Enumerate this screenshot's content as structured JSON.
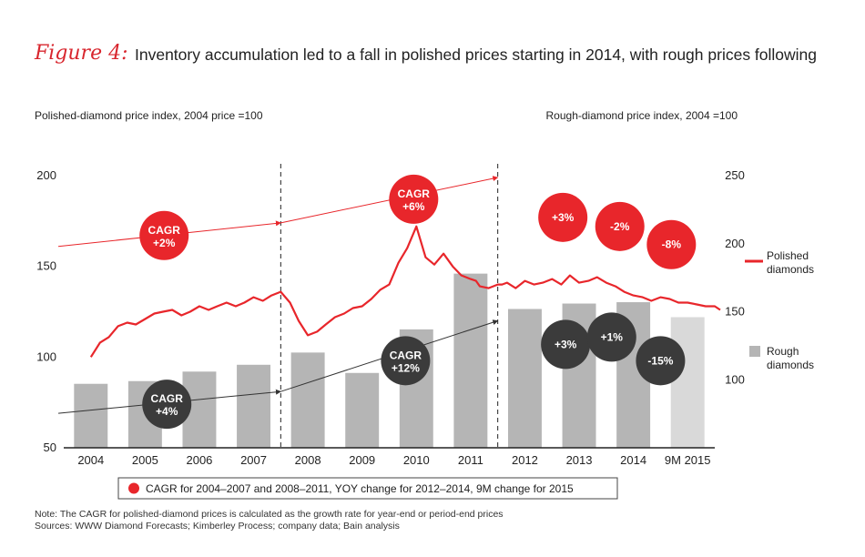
{
  "figure": {
    "label": "Figure 4:",
    "title": "Inventory accumulation led to a fall in polished prices starting in 2014, with rough prices following"
  },
  "left_axis_title": "Polished-diamond price index, 2004 price =100",
  "right_axis_title": "Rough-diamond price index, 2004 =100",
  "chart_data": {
    "type": "bar+line",
    "categories": [
      "2004",
      "2005",
      "2006",
      "2007",
      "2008",
      "2009",
      "2010",
      "2011",
      "2012",
      "2013",
      "2014",
      "9M 2015"
    ],
    "left_axis": {
      "ticks": [
        "50",
        "100",
        "150",
        "200"
      ],
      "ylim": [
        50,
        200
      ],
      "label": "Polished-diamond price index, 2004 price =100"
    },
    "right_axis": {
      "ticks": [
        "100",
        "150",
        "200",
        "250"
      ],
      "ylim": [
        50,
        250
      ],
      "label": "Rough-diamond price index, 2004 =100"
    },
    "rough_bars": {
      "name": "Rough diamonds",
      "axis": "right",
      "values": [
        97,
        99,
        106,
        111,
        120,
        105,
        137,
        178,
        152,
        156,
        157,
        146
      ],
      "colors": [
        "#b5b5b5",
        "#b5b5b5",
        "#b5b5b5",
        "#b5b5b5",
        "#b5b5b5",
        "#b5b5b5",
        "#b5b5b5",
        "#b5b5b5",
        "#b5b5b5",
        "#b5b5b5",
        "#b5b5b5",
        "#d9d9d9"
      ]
    },
    "polished_line": {
      "name": "Polished diamonds",
      "axis": "left",
      "color": "#e8262b",
      "x": [
        0.0,
        0.17,
        0.33,
        0.5,
        0.67,
        0.83,
        1.0,
        1.17,
        1.33,
        1.5,
        1.67,
        1.83,
        2.0,
        2.17,
        2.33,
        2.5,
        2.67,
        2.83,
        3.0,
        3.17,
        3.33,
        3.5,
        3.67,
        3.83,
        4.0,
        4.17,
        4.33,
        4.5,
        4.67,
        4.83,
        5.0,
        5.17,
        5.33,
        5.5,
        5.67,
        5.83,
        6.0,
        6.17,
        6.33,
        6.5,
        6.67,
        6.83,
        7.0,
        7.1,
        7.17,
        7.33,
        7.5,
        7.58,
        7.67,
        7.83,
        8.0,
        8.17,
        8.33,
        8.5,
        8.67,
        8.83,
        9.0,
        9.17,
        9.33,
        9.5,
        9.67,
        9.83,
        10.0,
        10.17,
        10.33,
        10.5,
        10.67,
        10.83,
        11.0,
        11.17,
        11.33,
        11.5,
        11.6
      ],
      "values": [
        100,
        108,
        111,
        117,
        119,
        118,
        121,
        124,
        125,
        126,
        123,
        125,
        128,
        126,
        128,
        130,
        128,
        130,
        133,
        131,
        134,
        136,
        130,
        120,
        112,
        114,
        118,
        122,
        124,
        127,
        128,
        132,
        137,
        140,
        152,
        160,
        172,
        155,
        151,
        157,
        150,
        145,
        143,
        142,
        139,
        138,
        140,
        140,
        141,
        138,
        142,
        140,
        141,
        143,
        140,
        145,
        141,
        142,
        144,
        141,
        139,
        136,
        134,
        133,
        131,
        133,
        132,
        130,
        130,
        129,
        128,
        128,
        126
      ],
      "x_note": "x in category units: 0 = center of 2004, 11 = center of 9M 2015 (approx. offset from centers)"
    },
    "polished_cagr_line": {
      "x": [
        -0.6,
        3.5,
        7.5
      ],
      "values": [
        161,
        174,
        199
      ],
      "axis": "left"
    },
    "rough_cagr_line": {
      "x": [
        -0.6,
        3.5,
        7.5
      ],
      "values": [
        69,
        81,
        120
      ],
      "axis": "left"
    },
    "dividers_after_categories": [
      "2007",
      "2011"
    ],
    "badges": [
      {
        "id": "polished-cagr-2004-2007",
        "text": [
          "CAGR",
          "+2%"
        ],
        "color": "red",
        "x": 1.35,
        "v": 167
      },
      {
        "id": "polished-cagr-2008-2011",
        "text": [
          "CAGR",
          "+6%"
        ],
        "color": "red",
        "x": 5.95,
        "v": 187
      },
      {
        "id": "polished-yoy-2012",
        "text": [
          "+3%"
        ],
        "color": "red",
        "x": 8.7,
        "v": 177
      },
      {
        "id": "polished-yoy-2013",
        "text": [
          "-2%"
        ],
        "color": "red",
        "x": 9.75,
        "v": 172
      },
      {
        "id": "polished-9m-2015",
        "text": [
          "-8%"
        ],
        "color": "red",
        "x": 10.7,
        "v": 162
      },
      {
        "id": "rough-cagr-2004-2007",
        "text": [
          "CAGR",
          "+4%"
        ],
        "color": "dark",
        "x": 1.4,
        "v": 74
      },
      {
        "id": "rough-cagr-2008-2011",
        "text": [
          "CAGR",
          "+12%"
        ],
        "color": "dark",
        "x": 5.8,
        "v": 98
      },
      {
        "id": "rough-yoy-2013",
        "text": [
          "+3%"
        ],
        "color": "dark",
        "x": 8.75,
        "v": 107
      },
      {
        "id": "rough-yoy-2014",
        "text": [
          "+1%"
        ],
        "color": "dark",
        "x": 9.6,
        "v": 111
      },
      {
        "id": "rough-9m-2015",
        "text": [
          "-15%"
        ],
        "color": "dark",
        "x": 10.5,
        "v": 98
      }
    ],
    "legend": [
      {
        "name": "Polished diamonds",
        "lines": [
          "Polished",
          "diamonds"
        ],
        "kind": "line",
        "color": "#e8262b"
      },
      {
        "name": "Rough diamonds",
        "lines": [
          "Rough",
          "diamonds"
        ],
        "kind": "square",
        "color": "#b5b5b5"
      }
    ],
    "key_note": "CAGR for 2004–2007 and 2008–2011, YOY change for 2012–2014, 9M change for 2015"
  },
  "colors": {
    "red": "#e8262b",
    "dark": "#3b3b3b",
    "bar": "#b5b5b5",
    "bar_light": "#d9d9d9"
  },
  "note": "Note: The CAGR for polished-diamond prices is calculated as the growth rate for year-end or period-end prices",
  "sources": "Sources: WWW Diamond Forecasts; Kimberley Process; company data; Bain analysis"
}
